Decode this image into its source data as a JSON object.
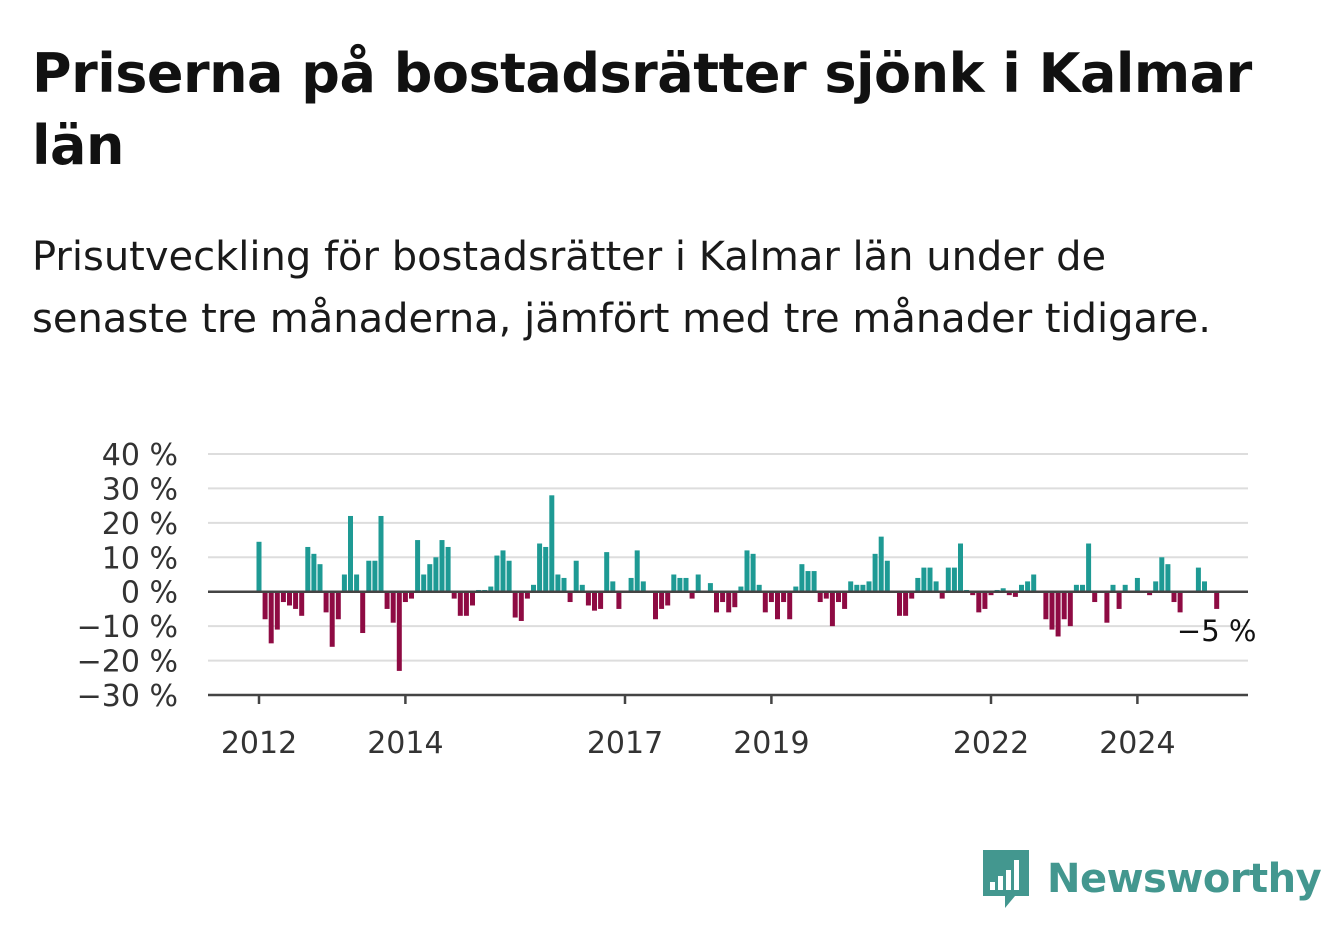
{
  "title": "Priserna på bostadsrätter sjönk i Kalmar län",
  "subtitle": "Prisutveckling för bostadsrätter i Kalmar län under de senaste tre månaderna, jämfört med tre månader tidigare.",
  "brand": {
    "name": "Newsworthy",
    "color": "#43978f"
  },
  "colors": {
    "positive": "#1e9a94",
    "negative": "#8e0b43",
    "grid": "#dddddd",
    "axis": "#444444"
  },
  "chart_data": {
    "type": "bar",
    "title": "Priserna på bostadsrätter sjönk i Kalmar län",
    "xlabel": "",
    "ylabel": "",
    "ylim": [
      -30,
      40
    ],
    "y_ticks": [
      40,
      30,
      20,
      10,
      0,
      -10,
      -20,
      -30
    ],
    "y_tick_labels": [
      "40 %",
      "30 %",
      "20 %",
      "10 %",
      "0 %",
      "−10 %",
      "−20 %",
      "−30 %"
    ],
    "x_ticks": [
      "2012-01",
      "2014-01",
      "2017-01",
      "2019-01",
      "2022-01",
      "2024-01"
    ],
    "x_tick_labels": [
      "2012",
      "2014",
      "2017",
      "2019",
      "2022",
      "2024"
    ],
    "grid": true,
    "start_month": "2012-01",
    "values": [
      14.5,
      -8,
      -15,
      -11,
      -3,
      -4,
      -5,
      -7,
      13,
      11,
      8,
      -6,
      -16,
      -8,
      5,
      22,
      5,
      -12,
      9,
      9,
      22,
      -5,
      -9,
      -23,
      -3,
      -2,
      15,
      5,
      8,
      10,
      15,
      13,
      -2,
      -7,
      -7,
      -4,
      0.5,
      0.5,
      1.5,
      10.5,
      12,
      9,
      -7.5,
      -8.5,
      -2,
      2,
      14,
      13,
      28,
      5,
      4,
      -3,
      9,
      2,
      -4,
      -5.5,
      -5,
      11.5,
      3,
      -5,
      0,
      4,
      12,
      3,
      0,
      -8,
      -5,
      -4,
      5,
      4,
      4,
      -2,
      5,
      0,
      2.5,
      -6,
      -3,
      -6,
      -4.5,
      1.5,
      12,
      11,
      2,
      -6,
      -3,
      -8,
      -3,
      -8,
      1.5,
      8,
      6,
      6,
      -3,
      -2,
      -10,
      -3,
      -5,
      3,
      2,
      2,
      3,
      11,
      16,
      9,
      0,
      -7,
      -7,
      -2,
      4,
      7,
      7,
      3,
      -2,
      7,
      7,
      14,
      0.5,
      -1,
      -6,
      -5,
      -1,
      0.5,
      1,
      -1,
      -1.5,
      2,
      3,
      5,
      0,
      -8,
      -11,
      -13,
      -8,
      -10,
      2,
      2,
      14,
      -3,
      0,
      -9,
      2,
      -5,
      2,
      0,
      4,
      0,
      -1,
      3,
      10,
      8,
      -3,
      -6,
      0,
      0,
      7,
      3,
      0,
      -5
    ],
    "annotation": "−5 %"
  }
}
